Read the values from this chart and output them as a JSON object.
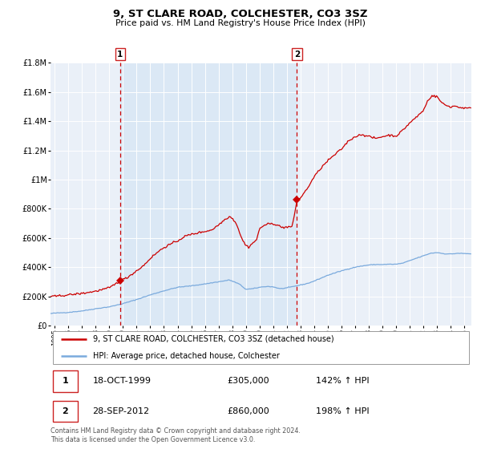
{
  "title": "9, ST CLARE ROAD, COLCHESTER, CO3 3SZ",
  "subtitle": "Price paid vs. HM Land Registry's House Price Index (HPI)",
  "ylim": [
    0,
    1800000
  ],
  "xlim_start": 1994.7,
  "xlim_end": 2025.5,
  "yticks": [
    0,
    200000,
    400000,
    600000,
    800000,
    1000000,
    1200000,
    1400000,
    1600000,
    1800000
  ],
  "ytick_labels": [
    "£0",
    "£200K",
    "£400K",
    "£600K",
    "£800K",
    "£1M",
    "£1.2M",
    "£1.4M",
    "£1.6M",
    "£1.8M"
  ],
  "xticks": [
    1995,
    1996,
    1997,
    1998,
    1999,
    2000,
    2001,
    2002,
    2003,
    2004,
    2005,
    2006,
    2007,
    2008,
    2009,
    2010,
    2011,
    2012,
    2013,
    2014,
    2015,
    2016,
    2017,
    2018,
    2019,
    2020,
    2021,
    2022,
    2023,
    2024,
    2025
  ],
  "red_line_color": "#cc0000",
  "blue_line_color": "#7aaadd",
  "shaded_region_color": "#dbe8f5",
  "marker1_x": 1999.79,
  "marker1_y": 305000,
  "marker1_label": "1",
  "marker1_date": "18-OCT-1999",
  "marker1_price": "£305,000",
  "marker1_hpi": "142% ↑ HPI",
  "marker2_x": 2012.74,
  "marker2_y": 860000,
  "marker2_label": "2",
  "marker2_date": "28-SEP-2012",
  "marker2_price": "£860,000",
  "marker2_hpi": "198% ↑ HPI",
  "legend_line1": "9, ST CLARE ROAD, COLCHESTER, CO3 3SZ (detached house)",
  "legend_line2": "HPI: Average price, detached house, Colchester",
  "footer": "Contains HM Land Registry data © Crown copyright and database right 2024.\nThis data is licensed under the Open Government Licence v3.0.",
  "background_color": "#ffffff",
  "plot_bg_color": "#eaf0f8"
}
